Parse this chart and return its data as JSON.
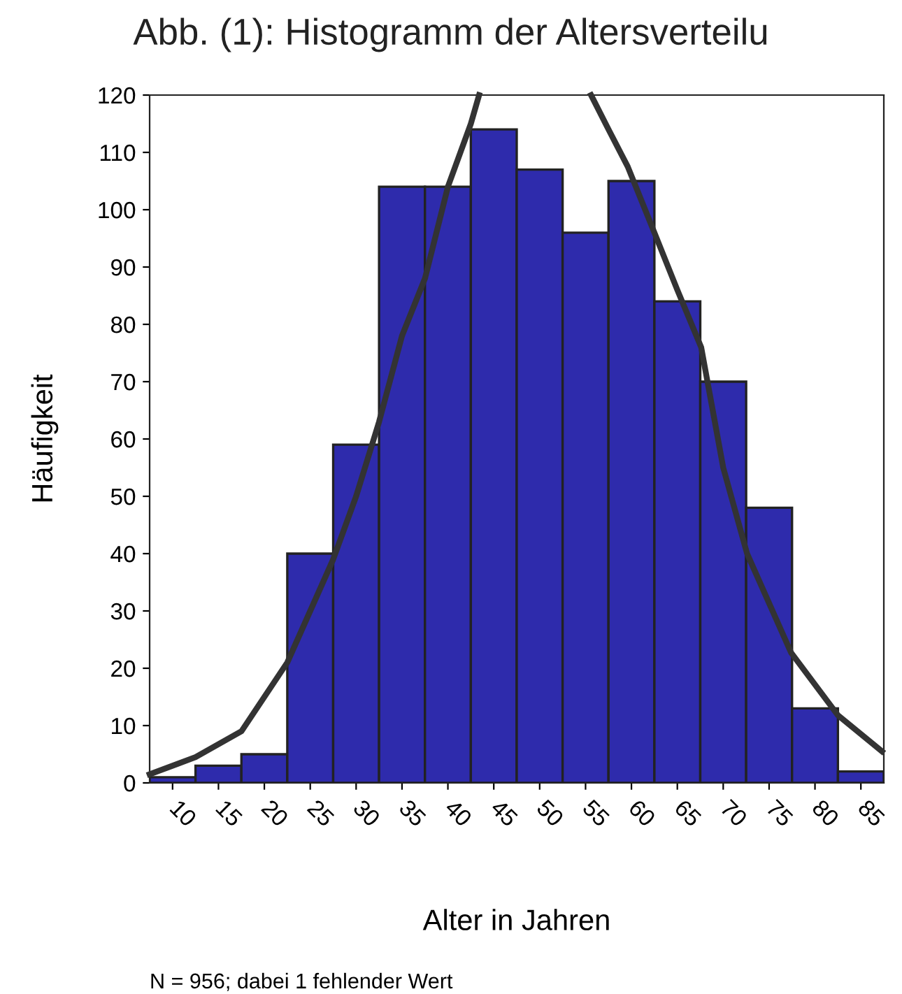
{
  "chart_data": {
    "type": "histogram",
    "title": "Abb. (1): Histogramm der Altersverteilu",
    "xlabel": "Alter in Jahren",
    "ylabel": "Häufigkeit",
    "annotations": [
      "N = 956; dabei 1 fehlender Wert"
    ],
    "bins": [
      7.5,
      12.5,
      17.5,
      22.5,
      27.5,
      32.5,
      37.5,
      42.5,
      47.5,
      52.5,
      57.5,
      62.5,
      67.5,
      72.5,
      77.5,
      82.5,
      87.5
    ],
    "series": [
      {
        "color": "#2e2bac",
        "values": [
          1,
          3,
          5,
          40,
          59,
          104,
          104,
          114,
          107,
          96,
          105,
          84,
          70,
          48,
          13,
          2
        ]
      },
      {
        "type": "line",
        "color": "#333333",
        "x": [
          7.5,
          12.5,
          17.5,
          22.5,
          27.5,
          30,
          32.5,
          35,
          37.5,
          40,
          42.5,
          43.4,
          49.5,
          55.6,
          57.5,
          59.6,
          62.5,
          65,
          67.6,
          70,
          72.6,
          77.4,
          82.5,
          87.3
        ],
        "values": [
          1.5,
          4.5,
          9,
          21,
          39,
          50,
          63,
          78,
          88,
          104,
          115,
          120,
          null,
          120,
          114,
          107.5,
          96,
          86,
          76,
          55,
          40,
          22.7,
          11.8,
          5.5
        ]
      }
    ],
    "xlim": [
      7.5,
      87.5
    ],
    "xticks": [
      10,
      15,
      20,
      25,
      30,
      35,
      40,
      45,
      50,
      55,
      60,
      65,
      70,
      75,
      80,
      85
    ],
    "ylim": [
      0,
      120
    ],
    "yticks": [
      0,
      10,
      20,
      30,
      40,
      50,
      60,
      70,
      80,
      90,
      100,
      110,
      120
    ],
    "grid": false,
    "marker": "none",
    "line_style": "solid"
  }
}
